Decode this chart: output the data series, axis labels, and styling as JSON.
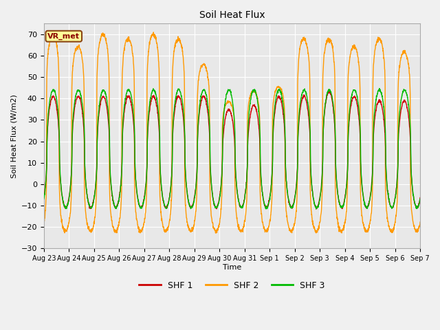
{
  "title": "Soil Heat Flux",
  "xlabel": "Time",
  "ylabel": "Soil Heat Flux (W/m2)",
  "ylim": [
    -30,
    75
  ],
  "yticks": [
    -30,
    -20,
    -10,
    0,
    10,
    20,
    30,
    40,
    50,
    60,
    70
  ],
  "plot_bg_color": "#e8e8e8",
  "fig_bg_color": "#f0f0f0",
  "grid_color": "#ffffff",
  "line_colors": {
    "SHF 1": "#cc0000",
    "SHF 2": "#ff9900",
    "SHF 3": "#00bb00"
  },
  "legend_labels": [
    "SHF 1",
    "SHF 2",
    "SHF 3"
  ],
  "annotation_text": "VR_met",
  "annotation_color": "#8b0000",
  "annotation_bg": "#ffff99",
  "annotation_border": "#8b4513",
  "x_tick_labels": [
    "Aug 23",
    "Aug 24",
    "Aug 25",
    "Aug 26",
    "Aug 27",
    "Aug 28",
    "Aug 29",
    "Aug 30",
    "Aug 31",
    "Sep 1",
    "Sep 2",
    "Sep 3",
    "Sep 4",
    "Sep 5",
    "Sep 6",
    "Sep 7"
  ],
  "n_days": 15,
  "points_per_day": 144,
  "shf1_day_peak": 41,
  "shf1_night_trough": -11,
  "shf2_day_peak": 70,
  "shf2_night_trough": -22,
  "shf3_day_peak": 44,
  "shf3_night_trough": -11,
  "linewidth": 1.0
}
